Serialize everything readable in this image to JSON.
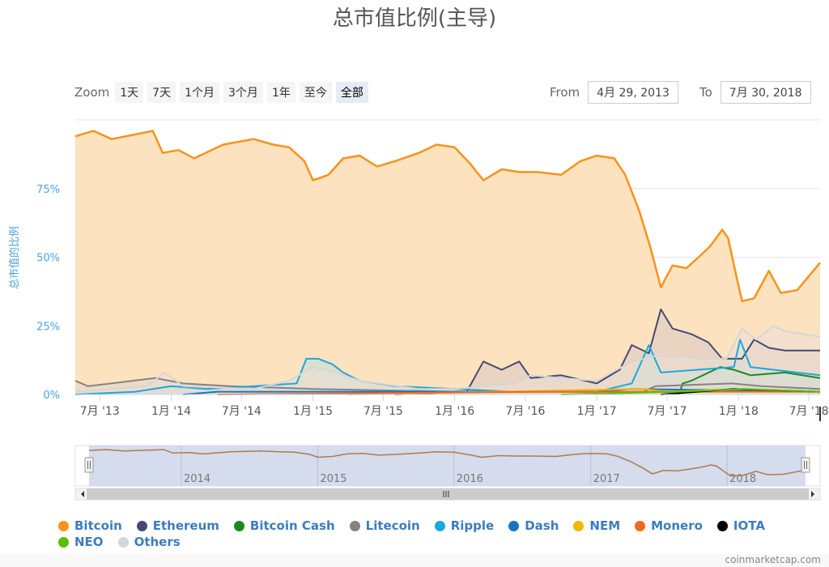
{
  "title": "总市值比例(主导)",
  "zoom": {
    "label": "Zoom",
    "buttons": [
      "1天",
      "7天",
      "1个月",
      "3个月",
      "1年",
      "至今",
      "全部"
    ],
    "active_index": 6
  },
  "range": {
    "from_label": "From",
    "from_value": "4月 29, 2013",
    "to_label": "To",
    "to_value": "7月 30, 2018"
  },
  "credit": "coinmarketcap.com",
  "chart_data": {
    "type": "area",
    "title": "总市值比例(主导)",
    "ylabel": "总市值的比例",
    "ylim": [
      0,
      100
    ],
    "yticks": [
      "0%",
      "25%",
      "50%",
      "75%"
    ],
    "xlim": [
      "2013-04-29",
      "2018-07-30"
    ],
    "xticks": [
      "7月 '13",
      "1月 '14",
      "7月 '14",
      "1月 '15",
      "7月 '15",
      "1月 '16",
      "7月 '16",
      "1月 '17",
      "7月 '17",
      "1月 '18",
      "7月 '18"
    ],
    "navigator_years": [
      "2014",
      "2015",
      "2016",
      "2017",
      "2018"
    ],
    "series": [
      {
        "name": "Bitcoin",
        "color": "#f7931a",
        "fill": "#fde2c0",
        "points": [
          [
            "2013-04-29",
            94
          ],
          [
            "2013-06-15",
            96
          ],
          [
            "2013-08-01",
            93
          ],
          [
            "2013-11-15",
            96
          ],
          [
            "2013-12-10",
            88
          ],
          [
            "2014-01-20",
            89
          ],
          [
            "2014-03-01",
            86
          ],
          [
            "2014-05-15",
            91
          ],
          [
            "2014-08-01",
            93
          ],
          [
            "2014-09-20",
            91
          ],
          [
            "2014-11-01",
            90
          ],
          [
            "2014-12-10",
            85
          ],
          [
            "2015-01-01",
            78
          ],
          [
            "2015-02-10",
            80
          ],
          [
            "2015-03-20",
            86
          ],
          [
            "2015-05-01",
            87
          ],
          [
            "2015-06-15",
            83
          ],
          [
            "2015-08-01",
            85
          ],
          [
            "2015-10-01",
            88
          ],
          [
            "2015-11-15",
            91
          ],
          [
            "2016-01-01",
            90
          ],
          [
            "2016-02-10",
            84
          ],
          [
            "2016-03-15",
            78
          ],
          [
            "2016-05-01",
            82
          ],
          [
            "2016-06-15",
            81
          ],
          [
            "2016-08-01",
            81
          ],
          [
            "2016-10-01",
            80
          ],
          [
            "2016-11-20",
            85
          ],
          [
            "2017-01-01",
            87
          ],
          [
            "2017-02-15",
            86
          ],
          [
            "2017-03-15",
            80
          ],
          [
            "2017-04-20",
            67
          ],
          [
            "2017-05-20",
            53
          ],
          [
            "2017-06-15",
            39
          ],
          [
            "2017-07-15",
            47
          ],
          [
            "2017-08-20",
            46
          ],
          [
            "2017-09-20",
            50
          ],
          [
            "2017-10-20",
            54
          ],
          [
            "2017-11-20",
            60
          ],
          [
            "2017-12-05",
            57
          ],
          [
            "2017-12-25",
            44
          ],
          [
            "2018-01-10",
            34
          ],
          [
            "2018-02-10",
            35
          ],
          [
            "2018-03-20",
            45
          ],
          [
            "2018-04-20",
            37
          ],
          [
            "2018-06-01",
            38
          ],
          [
            "2018-07-30",
            48
          ]
        ]
      },
      {
        "name": "Ethereum",
        "color": "#454a75",
        "fill": "#d7c9bf",
        "points": [
          [
            "2015-08-01",
            0
          ],
          [
            "2016-02-01",
            1
          ],
          [
            "2016-03-15",
            12
          ],
          [
            "2016-05-01",
            9
          ],
          [
            "2016-06-15",
            12
          ],
          [
            "2016-07-15",
            6
          ],
          [
            "2016-10-01",
            7
          ],
          [
            "2017-01-01",
            4
          ],
          [
            "2017-03-01",
            9
          ],
          [
            "2017-04-01",
            18
          ],
          [
            "2017-05-15",
            15
          ],
          [
            "2017-06-15",
            31
          ],
          [
            "2017-07-15",
            24
          ],
          [
            "2017-09-01",
            22
          ],
          [
            "2017-10-15",
            19
          ],
          [
            "2017-11-20",
            13
          ],
          [
            "2018-01-10",
            13
          ],
          [
            "2018-02-10",
            20
          ],
          [
            "2018-03-20",
            17
          ],
          [
            "2018-05-01",
            16
          ],
          [
            "2018-07-30",
            16
          ]
        ]
      },
      {
        "name": "Bitcoin Cash",
        "color": "#1b8a1b",
        "fill": "#c3d8c0",
        "points": [
          [
            "2017-08-01",
            0
          ],
          [
            "2017-08-10",
            4
          ],
          [
            "2017-09-01",
            5
          ],
          [
            "2017-11-15",
            10
          ],
          [
            "2017-12-20",
            9
          ],
          [
            "2018-02-01",
            7
          ],
          [
            "2018-05-01",
            8
          ],
          [
            "2018-07-30",
            6
          ]
        ]
      },
      {
        "name": "Litecoin",
        "color": "#838383",
        "fill": "#e4d6c8",
        "points": [
          [
            "2013-04-29",
            5
          ],
          [
            "2013-06-01",
            3
          ],
          [
            "2013-11-20",
            6
          ],
          [
            "2014-02-01",
            4
          ],
          [
            "2014-06-01",
            3
          ],
          [
            "2015-01-01",
            2
          ],
          [
            "2016-01-01",
            1
          ],
          [
            "2017-05-01",
            1
          ],
          [
            "2017-06-01",
            3
          ],
          [
            "2017-12-15",
            4
          ],
          [
            "2018-03-01",
            3
          ],
          [
            "2018-07-30",
            2
          ]
        ]
      },
      {
        "name": "Ripple",
        "color": "#1aa8e0",
        "fill": "#bfdcd8",
        "points": [
          [
            "2013-04-29",
            0
          ],
          [
            "2013-10-01",
            1
          ],
          [
            "2014-01-01",
            3
          ],
          [
            "2014-04-01",
            2
          ],
          [
            "2014-08-01",
            3
          ],
          [
            "2014-11-20",
            4
          ],
          [
            "2014-12-15",
            13
          ],
          [
            "2015-01-15",
            13
          ],
          [
            "2015-02-20",
            11
          ],
          [
            "2015-03-20",
            8
          ],
          [
            "2015-05-01",
            5
          ],
          [
            "2015-08-01",
            3
          ],
          [
            "2016-01-01",
            2
          ],
          [
            "2016-06-01",
            1
          ],
          [
            "2017-01-01",
            1
          ],
          [
            "2017-04-01",
            4
          ],
          [
            "2017-05-15",
            18
          ],
          [
            "2017-06-15",
            8
          ],
          [
            "2017-12-20",
            10
          ],
          [
            "2018-01-05",
            20
          ],
          [
            "2018-02-01",
            10
          ],
          [
            "2018-07-30",
            7
          ]
        ]
      },
      {
        "name": "Dash",
        "color": "#1c75bc",
        "fill": "#c9d7e6",
        "points": [
          [
            "2014-02-01",
            0
          ],
          [
            "2014-05-01",
            1
          ],
          [
            "2017-01-01",
            1
          ],
          [
            "2017-04-01",
            2
          ],
          [
            "2018-07-30",
            1
          ]
        ]
      },
      {
        "name": "NEM",
        "color": "#f2b705",
        "fill": "#f5e3b8",
        "points": [
          [
            "2015-04-01",
            0
          ],
          [
            "2017-05-01",
            2
          ],
          [
            "2017-07-01",
            1
          ],
          [
            "2018-01-10",
            2
          ],
          [
            "2018-07-30",
            1
          ]
        ]
      },
      {
        "name": "Monero",
        "color": "#f26822",
        "fill": "#f5d4c1",
        "points": [
          [
            "2014-05-01",
            0
          ],
          [
            "2016-09-01",
            1
          ],
          [
            "2018-07-30",
            1
          ]
        ]
      },
      {
        "name": "IOTA",
        "color": "#000000",
        "fill": "#d4d4d4",
        "points": [
          [
            "2017-06-15",
            0
          ],
          [
            "2017-12-20",
            2
          ],
          [
            "2018-07-30",
            1
          ]
        ]
      },
      {
        "name": "NEO",
        "color": "#58bf00",
        "fill": "#d9eec0",
        "points": [
          [
            "2016-10-01",
            0
          ],
          [
            "2017-08-01",
            1
          ],
          [
            "2018-01-15",
            2
          ],
          [
            "2018-07-30",
            1
          ]
        ]
      },
      {
        "name": "Others",
        "color": "#d6d6d6",
        "fill": "#ecdfd5",
        "points": [
          [
            "2013-04-29",
            1
          ],
          [
            "2013-11-01",
            3
          ],
          [
            "2013-12-15",
            8
          ],
          [
            "2014-02-01",
            3
          ],
          [
            "2014-08-01",
            2
          ],
          [
            "2014-11-01",
            5
          ],
          [
            "2015-01-01",
            10
          ],
          [
            "2015-03-01",
            8
          ],
          [
            "2015-05-01",
            5
          ],
          [
            "2015-10-01",
            2
          ],
          [
            "2016-01-01",
            2
          ],
          [
            "2016-06-01",
            4
          ],
          [
            "2016-07-15",
            7
          ],
          [
            "2016-10-01",
            6
          ],
          [
            "2017-01-01",
            5
          ],
          [
            "2017-04-01",
            12
          ],
          [
            "2017-06-01",
            14
          ],
          [
            "2017-08-01",
            14
          ],
          [
            "2017-10-01",
            13
          ],
          [
            "2017-12-01",
            13
          ],
          [
            "2018-01-10",
            24
          ],
          [
            "2018-02-15",
            20
          ],
          [
            "2018-04-01",
            25
          ],
          [
            "2018-05-01",
            23
          ],
          [
            "2018-07-30",
            21
          ]
        ]
      }
    ]
  }
}
